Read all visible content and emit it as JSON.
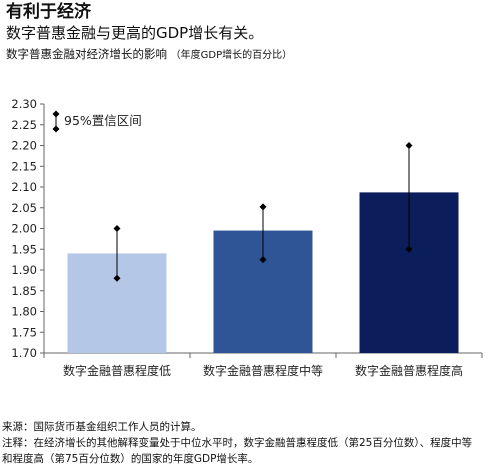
{
  "header": {
    "title": "有利于经济",
    "subtitle": "数字普惠金融与更高的GDP增长有关。",
    "caption_main": "数字普惠金融对经济增长的影响",
    "caption_sub": "（年度GDP增长的百分比）"
  },
  "chart_data": {
    "type": "bar",
    "title": "",
    "xlabel": "",
    "ylabel": "",
    "categories": [
      "数字金融普惠程度低",
      "数字金融普惠程度中等",
      "数字金融普惠程度高"
    ],
    "values": [
      1.94,
      1.995,
      2.087
    ],
    "error_low": [
      1.88,
      1.925,
      1.95
    ],
    "error_high": [
      2.0,
      2.052,
      2.2
    ],
    "bar_colors": [
      "#b4c7e7",
      "#2f5597",
      "#0b1e5b"
    ],
    "ylim": [
      1.7,
      2.3
    ],
    "yticks": [
      "1.70",
      "1.75",
      "1.80",
      "1.85",
      "1.90",
      "1.95",
      "2.00",
      "2.05",
      "2.10",
      "2.15",
      "2.20",
      "2.25",
      "2.30"
    ],
    "legend": {
      "label": "95%置信区间",
      "placement": "top-left"
    },
    "grid": false
  },
  "footer": {
    "source": "来源：国际货币基金组织工作人员的计算。",
    "note_line1": "注释：在经济增长的其他解释变量处于中位水平时，数字金融普惠程度低（第25百分位数）、程度中等",
    "note_line2": "和程度高（第75百分位数）的国家的年度GDP增长率。"
  }
}
